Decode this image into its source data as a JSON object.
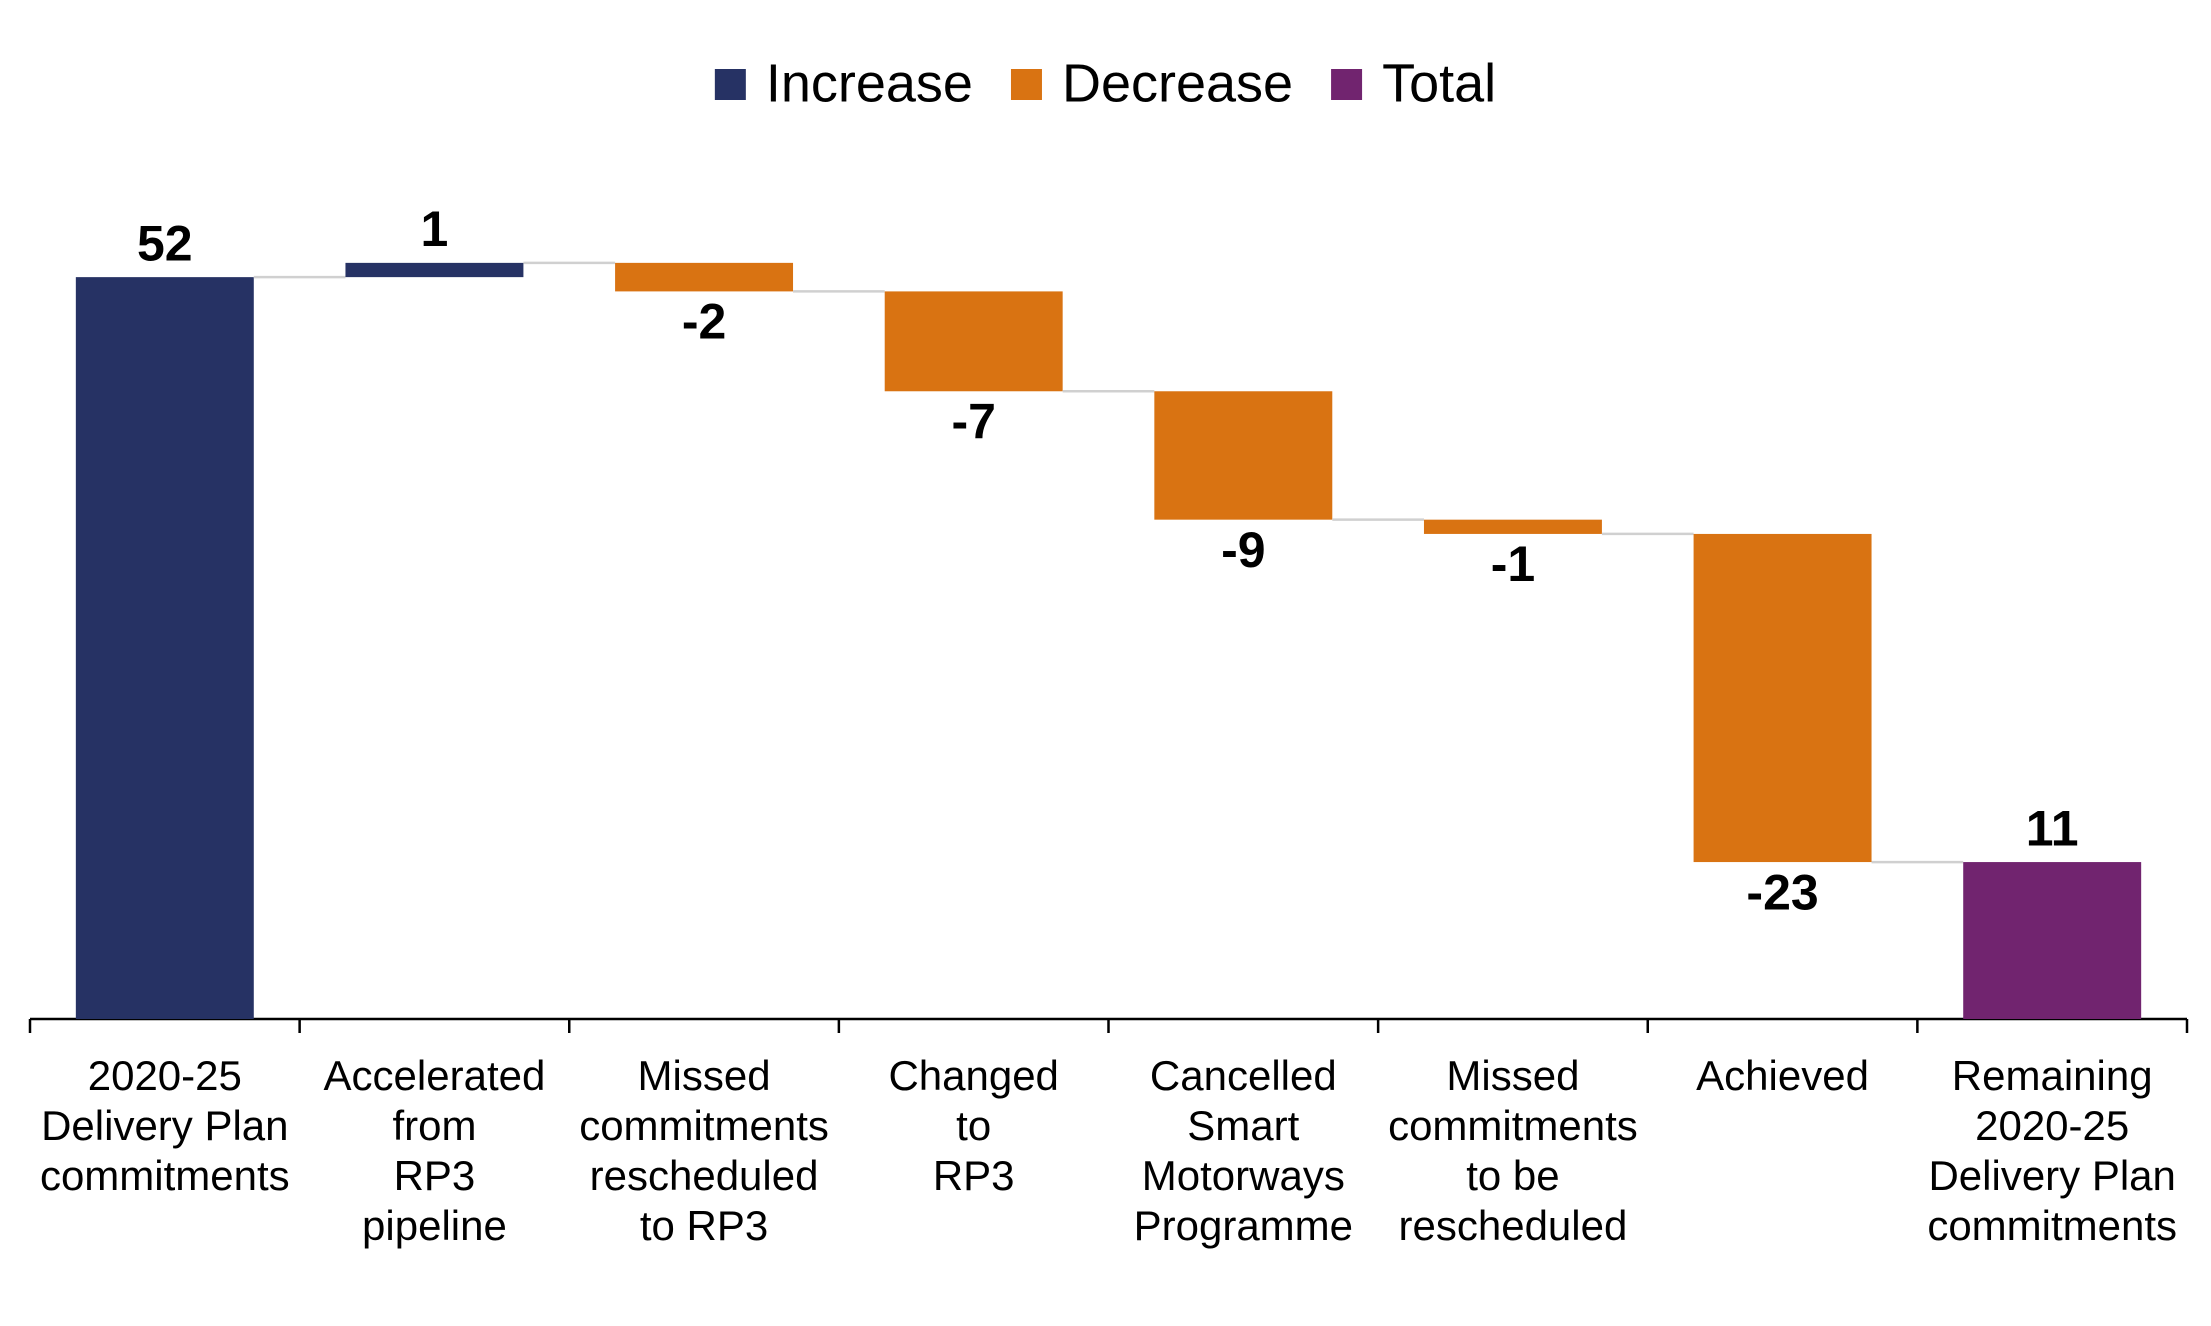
{
  "chart_data": {
    "type": "waterfall",
    "categories": [
      "2020-25\nDelivery Plan\ncommitments",
      "Accelerated\nfrom\nRP3\npipeline",
      "Missed\ncommitments\nrescheduled\nto RP3",
      "Changed\nto\nRP3",
      "Cancelled\nSmart\nMotorways\nProgramme",
      "Missed\ncommitments\nto be\nrescheduled",
      "Achieved",
      "Remaining\n2020-25\nDelivery Plan\ncommitments"
    ],
    "series": [
      {
        "name": "Increase",
        "color": "#263264",
        "values": [
          52,
          1,
          null,
          null,
          null,
          null,
          null,
          null
        ]
      },
      {
        "name": "Decrease",
        "color": "#d97312",
        "values": [
          null,
          null,
          -2,
          -7,
          -9,
          -1,
          -23,
          null
        ]
      },
      {
        "name": "Total",
        "color": "#71246f",
        "values": [
          null,
          null,
          null,
          null,
          null,
          null,
          null,
          11
        ]
      }
    ],
    "ylim": [
      0,
      60
    ],
    "legend": "top"
  }
}
